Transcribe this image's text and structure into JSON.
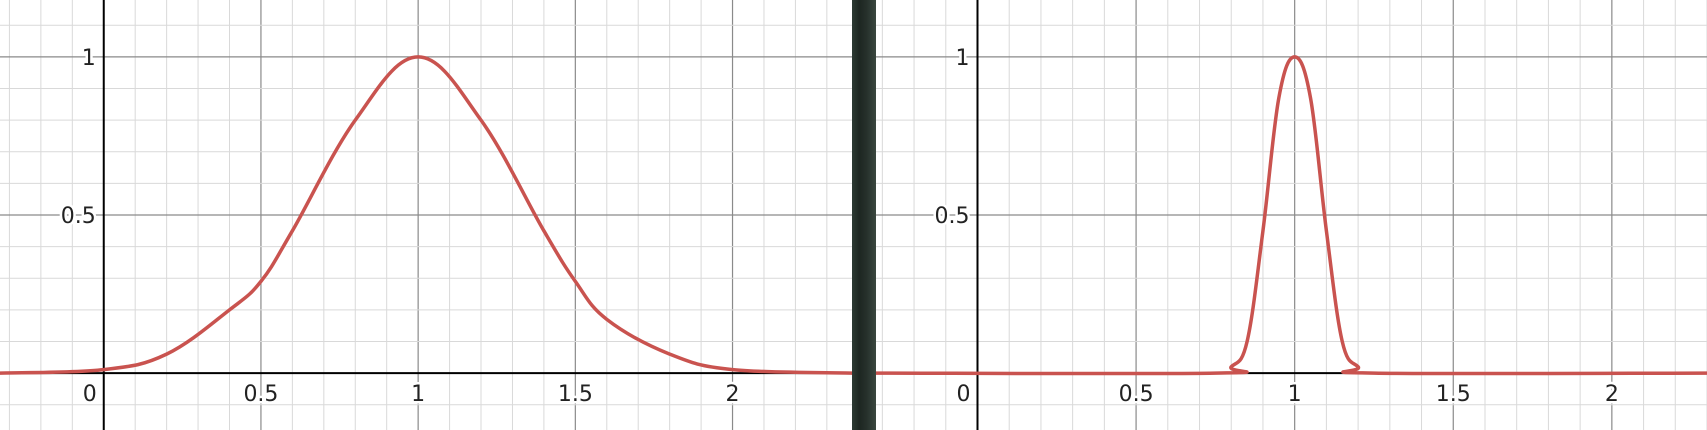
{
  "chart_data": [
    {
      "type": "line",
      "xlim": [
        -0.33,
        2.38
      ],
      "ylim": [
        -0.18,
        1.18
      ],
      "grid": true,
      "x_ticks": [
        "0",
        "0.5",
        "1",
        "1.5",
        "2"
      ],
      "y_ticks": [
        "0.5",
        "1"
      ],
      "series": [
        {
          "color": "#c9534f",
          "x": [
            -0.33,
            0.0,
            0.2,
            0.4,
            0.5,
            0.6,
            0.8,
            1.0,
            1.2,
            1.4,
            1.5,
            1.6,
            1.8,
            2.0,
            2.38
          ],
          "y": [
            0.0,
            0.011,
            0.06,
            0.2,
            0.29,
            0.45,
            0.8,
            1.0,
            0.8,
            0.45,
            0.29,
            0.17,
            0.06,
            0.011,
            0.0
          ]
        }
      ]
    },
    {
      "type": "line",
      "xlim": [
        -0.32,
        2.3
      ],
      "ylim": [
        -0.18,
        1.18
      ],
      "grid": true,
      "x_ticks": [
        "0",
        "0.5",
        "1",
        "1.5",
        "2"
      ],
      "y_ticks": [
        "0.5",
        "1"
      ],
      "series": [
        {
          "color": "#c9534f",
          "x": [
            -0.32,
            0.75,
            0.8,
            0.85,
            0.9,
            0.95,
            1.0,
            1.05,
            1.1,
            1.15,
            1.2,
            1.25,
            2.3
          ],
          "y": [
            0.0,
            0.0,
            0.02,
            0.1,
            0.45,
            0.87,
            1.0,
            0.87,
            0.45,
            0.1,
            0.02,
            0.0,
            0.0
          ]
        }
      ]
    }
  ]
}
